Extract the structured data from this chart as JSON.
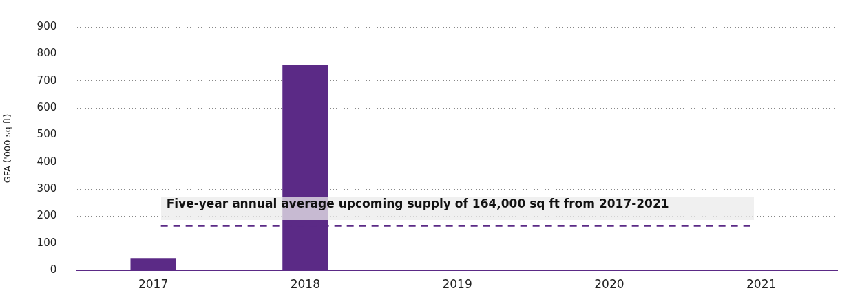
{
  "chart_data": {
    "type": "bar",
    "ylabel": "GFA ('000 sq ft)",
    "categories": [
      "2017",
      "2018",
      "2019",
      "2020",
      "2021"
    ],
    "values": [
      45,
      760,
      0,
      0,
      0
    ],
    "color": "#5b2a86",
    "ylim": [
      0,
      900
    ],
    "yticks": [
      0,
      100,
      200,
      300,
      400,
      500,
      600,
      700,
      800,
      900
    ],
    "grid": "y",
    "legend": false,
    "ref_lines": [
      {
        "axis": "y",
        "value": 164,
        "label": "Five-year annual average upcoming supply of 164,000 sq ft from 2017-2021",
        "color": "#5b2a86",
        "line_style": "dashed"
      }
    ]
  }
}
